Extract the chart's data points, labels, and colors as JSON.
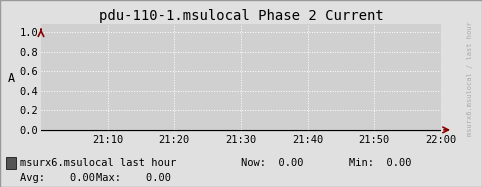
{
  "title": "pdu-110-1.msulocal Phase 2 Current",
  "ylabel": "A",
  "bg_color": "#e0e0e0",
  "plot_bg_color": "#d0d0d0",
  "grid_color": "#ffffff",
  "border_color": "#999999",
  "ylim_min": 0.0,
  "ylim_max": 1.0,
  "yticks": [
    0.0,
    0.2,
    0.4,
    0.6,
    0.8,
    1.0
  ],
  "ytick_labels": [
    "0.0",
    "0.2",
    "0.4",
    "0.6",
    "0.8",
    "1.0"
  ],
  "xtick_labels": [
    "21:10",
    "21:20",
    "21:30",
    "21:40",
    "21:50",
    "22:00"
  ],
  "arrow_color": "#8b0000",
  "line_color": "#000000",
  "legend_box_color": "#555555",
  "legend_text": "msurx6.msulocal last hour",
  "legend_now_label": "Now:",
  "legend_now_val": "0.00",
  "legend_min_label": "Min:",
  "legend_min_val": "0.00",
  "legend_avg_label": "Avg:",
  "legend_avg_val": "0.00",
  "legend_max_label": "Max:",
  "legend_max_val": "0.00",
  "font_family": "monospace",
  "title_fontsize": 10,
  "tick_fontsize": 7.5,
  "legend_fontsize": 7.5,
  "right_label_text": "msurx6.msulocal / last hour",
  "right_label_color": "#aaaaaa"
}
